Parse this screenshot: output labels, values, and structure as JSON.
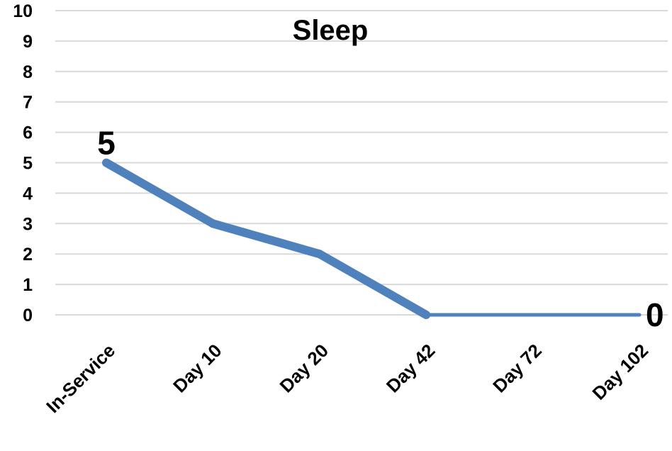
{
  "chart_data": {
    "type": "line",
    "title": "Sleep",
    "xlabel": "",
    "ylabel": "",
    "categories": [
      "In-Service",
      "Day 10",
      "Day 20",
      "Day 42",
      "Day 72",
      "Day 102"
    ],
    "series": [
      {
        "values": [
          5,
          3,
          2,
          0,
          0,
          0
        ],
        "color": "#4f81bd"
      }
    ],
    "data_labels": [
      {
        "index": 0,
        "text": "5"
      },
      {
        "index": 5,
        "text": "0"
      }
    ],
    "ylim": [
      0,
      10
    ],
    "yticks": [
      "0",
      "1",
      "2",
      "3",
      "4",
      "5",
      "6",
      "7",
      "8",
      "9",
      "10"
    ],
    "grid": true,
    "legend": "none"
  }
}
